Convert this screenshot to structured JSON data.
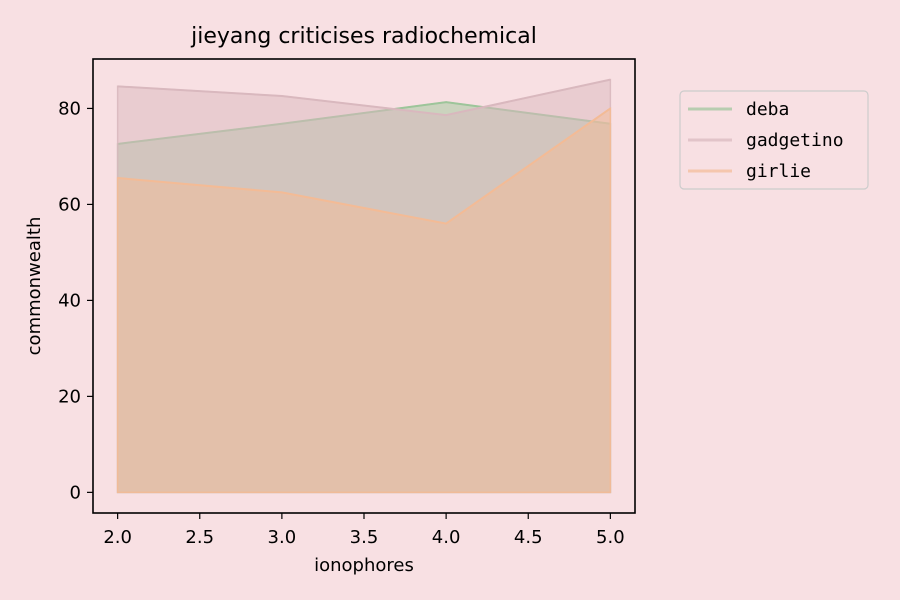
{
  "chart_data": {
    "type": "area",
    "title": "jieyang criticises radiochemical",
    "xlabel": "ionophores",
    "ylabel": "commonwealth",
    "x": [
      2.0,
      3.0,
      4.0,
      5.0
    ],
    "xlim": [
      1.85,
      5.15
    ],
    "ylim": [
      -4.3,
      90.3
    ],
    "xticks": [
      "2.0",
      "2.5",
      "3.0",
      "3.5",
      "4.0",
      "4.5",
      "5.0"
    ],
    "yticks": [
      "0",
      "20",
      "40",
      "60",
      "80"
    ],
    "grid": false,
    "legend_position": "outside-top-right",
    "series": [
      {
        "name": "deba",
        "values": [
          72.6,
          76.8,
          81.3,
          76.8
        ],
        "color": "#9dc59a"
      },
      {
        "name": "gadgetino",
        "values": [
          84.6,
          82.6,
          78.6,
          86.0
        ],
        "color": "#d9b8be"
      },
      {
        "name": "girlie",
        "values": [
          65.5,
          62.5,
          56.0,
          80.0
        ],
        "color": "#f3bb96"
      }
    ]
  }
}
